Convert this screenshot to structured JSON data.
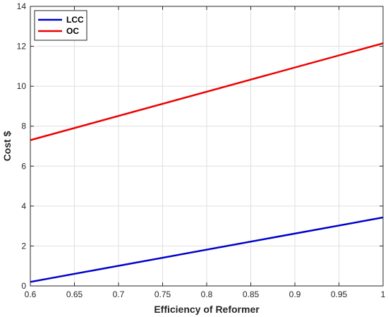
{
  "chart_data": {
    "type": "line",
    "title": "",
    "xlabel": "Efficiency of Reformer",
    "ylabel": "Cost $",
    "xlim": [
      0.6,
      1.0
    ],
    "ylim": [
      0,
      14
    ],
    "grid": true,
    "legend_position": "top-left",
    "x_ticks": [
      "0.6",
      "0.65",
      "0.7",
      "0.75",
      "0.8",
      "0.85",
      "0.9",
      "0.95",
      "1"
    ],
    "y_ticks": [
      "0",
      "2",
      "4",
      "6",
      "8",
      "10",
      "12",
      "14"
    ],
    "series": [
      {
        "name": "LCC",
        "color": "#0000cc",
        "x": [
          0.6,
          1.0
        ],
        "y": [
          0.2,
          3.43
        ]
      },
      {
        "name": "OC",
        "color": "#ee0000",
        "x": [
          0.6,
          1.0
        ],
        "y": [
          7.3,
          12.15
        ]
      }
    ]
  }
}
